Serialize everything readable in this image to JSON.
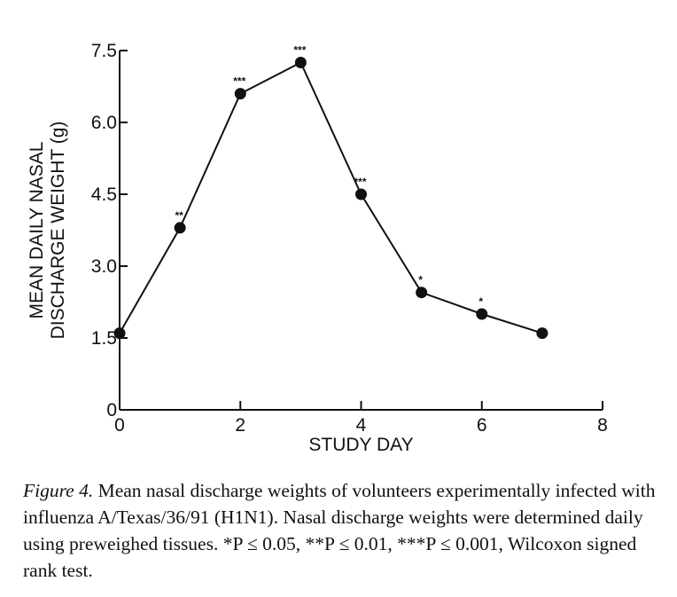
{
  "chart_data": {
    "type": "line",
    "title": "",
    "xlabel": "STUDY DAY",
    "ylabel_lines": [
      "MEAN DAILY NASAL",
      "DISCHARGE WEIGHT (g)"
    ],
    "xlim": [
      0,
      8
    ],
    "ylim": [
      0,
      7.5
    ],
    "x_ticks": [
      0,
      2,
      4,
      6,
      8
    ],
    "x_tick_labels": [
      "0",
      "2",
      "4",
      "6",
      "8"
    ],
    "y_ticks": [
      0,
      1.5,
      3.0,
      4.5,
      6.0,
      7.5
    ],
    "y_tick_labels": [
      "0",
      "1.5",
      "3.0",
      "4.5",
      "6.0",
      "7.5"
    ],
    "grid": false,
    "legend": "none",
    "series": [
      {
        "x": [
          0,
          1,
          2,
          3,
          4,
          5,
          6,
          7
        ],
        "y": [
          1.6,
          3.8,
          6.6,
          7.25,
          4.5,
          2.45,
          2.0,
          1.6
        ],
        "significance": [
          "",
          "**",
          "***",
          "***",
          "***",
          "*",
          "*",
          ""
        ]
      }
    ]
  },
  "caption": {
    "label": "Figure 4.",
    "text": "Mean nasal discharge weights of volunteers experimentally infected with influenza A/Texas/36/91 (H1N1). Nasal discharge weights were determined daily using preweighed tissues. *P ≤ 0.05, **P ≤ 0.01, ***P ≤ 0.001, Wilcoxon signed rank test."
  }
}
